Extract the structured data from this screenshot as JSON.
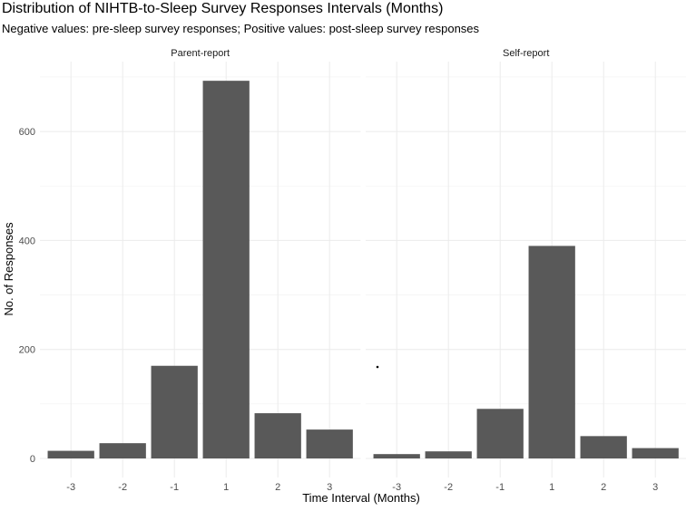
{
  "chart_data": {
    "type": "bar",
    "title": "Distribution of NIHTB-to-Sleep Survey Responses Intervals (Months)",
    "subtitle": "Negative values: pre-sleep survey responses; Positive values: post-sleep survey responses",
    "xlabel": "Time Interval (Months)",
    "ylabel": "No. of Responses",
    "categories": [
      "-3",
      "-2",
      "-1",
      "1",
      "2",
      "3"
    ],
    "ylim": [
      0,
      693
    ],
    "yticks": [
      0,
      200,
      400,
      600
    ],
    "grid": true,
    "bar_color": "#595959",
    "facets": [
      {
        "name": "Parent-report",
        "values": [
          14,
          28,
          170,
          693,
          83,
          53
        ]
      },
      {
        "name": "Self-report",
        "values": [
          8,
          13,
          91,
          390,
          41,
          19
        ]
      }
    ]
  }
}
